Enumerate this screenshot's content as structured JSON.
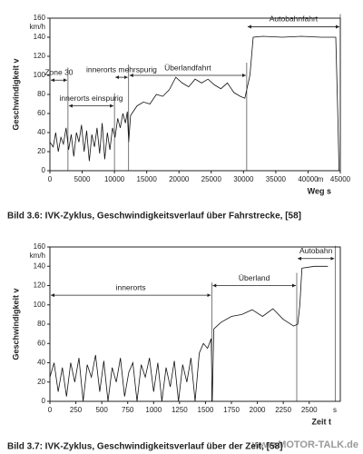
{
  "chart_data": [
    {
      "type": "line",
      "title": "Bild 3.6: IVK-Zyklus, Geschwindigkeitsverlauf über Fahrstrecke, [58]",
      "x_label": "Weg s",
      "y_label": "Geschwindigkeit v",
      "x_unit": "m",
      "y_unit": "km/h",
      "xlim": [
        0,
        45000
      ],
      "ylim": [
        0,
        160
      ],
      "xticks": [
        0,
        5000,
        10000,
        15000,
        20000,
        25000,
        30000,
        35000,
        40000,
        45000
      ],
      "yticks": [
        0,
        20,
        40,
        60,
        80,
        100,
        120,
        140,
        160
      ],
      "grid": false,
      "color": "#111111",
      "x": [
        0,
        500,
        900,
        1300,
        1700,
        2100,
        2500,
        2900,
        3300,
        3700,
        4100,
        4500,
        4900,
        5300,
        5700,
        6100,
        6500,
        6900,
        7300,
        7700,
        8100,
        8500,
        8900,
        9300,
        9700,
        10100,
        10500,
        10900,
        11300,
        11700,
        12000,
        12200,
        12500,
        13500,
        14500,
        15500,
        16500,
        17500,
        18500,
        19500,
        20500,
        21500,
        22500,
        23500,
        24500,
        25500,
        26500,
        27500,
        28500,
        29500,
        30200,
        31000,
        31500,
        33000,
        36000,
        39000,
        42000,
        44300,
        44600,
        44800
      ],
      "values": [
        30,
        25,
        40,
        20,
        35,
        28,
        45,
        22,
        38,
        15,
        40,
        30,
        48,
        20,
        42,
        10,
        38,
        25,
        45,
        18,
        50,
        12,
        40,
        22,
        45,
        35,
        55,
        45,
        60,
        50,
        62,
        30,
        58,
        68,
        72,
        70,
        80,
        78,
        85,
        98,
        92,
        88,
        96,
        92,
        96,
        90,
        86,
        92,
        82,
        78,
        76,
        100,
        140,
        141,
        140,
        141,
        140,
        140,
        60,
        0
      ],
      "annotations": [
        {
          "text": "Zone 30",
          "x_range": [
            0,
            2800
          ],
          "y": 95
        },
        {
          "text": "innerorts einspurig",
          "x_range": [
            2800,
            10000
          ],
          "y": 68
        },
        {
          "text": "innerorts mehrspurig",
          "x_range": [
            10000,
            12200
          ],
          "y": 98
        },
        {
          "text": "Überlandfahrt",
          "x_range": [
            12200,
            30500
          ],
          "y": 100
        },
        {
          "text": "Autobahnfahrt",
          "x_range": [
            30500,
            45000
          ],
          "y": 151
        }
      ]
    },
    {
      "type": "line",
      "title": "Bild 3.7: IVK-Zyklus, Geschwindigkeitsverlauf über der Zeit, [58]",
      "x_label": "Zeit t",
      "y_label": "Geschwindigkeit v",
      "x_unit": "s",
      "y_unit": "km/h",
      "xlim": [
        0,
        2800
      ],
      "ylim": [
        0,
        160
      ],
      "xticks": [
        0,
        250,
        500,
        750,
        1000,
        1250,
        1500,
        1750,
        2000,
        2250,
        2500
      ],
      "yticks": [
        0,
        20,
        40,
        60,
        80,
        100,
        120,
        140,
        160
      ],
      "grid": false,
      "color": "#111111",
      "x": [
        0,
        40,
        80,
        120,
        160,
        200,
        240,
        280,
        320,
        360,
        400,
        440,
        480,
        520,
        560,
        600,
        640,
        680,
        720,
        760,
        800,
        840,
        880,
        920,
        960,
        1000,
        1040,
        1080,
        1120,
        1160,
        1200,
        1240,
        1280,
        1320,
        1360,
        1400,
        1440,
        1480,
        1520,
        1555,
        1565,
        1580,
        1650,
        1750,
        1850,
        1950,
        2050,
        2150,
        2250,
        2350,
        2390,
        2410,
        2430,
        2550,
        2680
      ],
      "values": [
        25,
        40,
        10,
        35,
        5,
        40,
        20,
        45,
        0,
        38,
        25,
        48,
        10,
        42,
        0,
        35,
        20,
        45,
        5,
        30,
        40,
        0,
        38,
        25,
        45,
        10,
        40,
        0,
        35,
        15,
        42,
        0,
        38,
        20,
        45,
        0,
        50,
        60,
        55,
        65,
        0,
        75,
        82,
        88,
        90,
        95,
        88,
        96,
        85,
        78,
        80,
        100,
        138,
        140,
        140
      ],
      "annotations": [
        {
          "text": "innerorts",
          "x_range": [
            0,
            1560
          ],
          "y": 110
        },
        {
          "text": "Überland",
          "x_range": [
            1560,
            2380
          ],
          "y": 120
        },
        {
          "text": "Autobahn",
          "x_range": [
            2380,
            2750
          ],
          "y": 148
        }
      ]
    }
  ],
  "watermark": "www.MOTOR-TALK.de"
}
